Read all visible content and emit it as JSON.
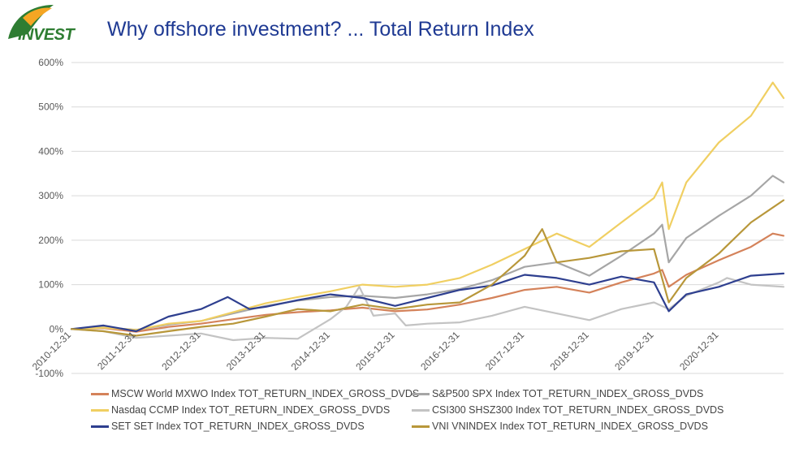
{
  "header": {
    "logo_text": "INVEST",
    "title": "Why offshore investment? ... Total Return Index"
  },
  "colors": {
    "title": "#1f3a93",
    "logo_green": "#2e7d32",
    "logo_orange": "#f5a623",
    "gridline": "#d9d9d9"
  },
  "chart_data": {
    "type": "line",
    "title": "Why offshore investment? ... Total Return Index",
    "xlabel": "",
    "ylabel": "",
    "xlim": [
      "2010-12-31",
      "2021-12-31"
    ],
    "ylim": [
      -100,
      600
    ],
    "yticks": [
      -100,
      0,
      100,
      200,
      300,
      400,
      500,
      600
    ],
    "ytick_labels": [
      "-100%",
      "0%",
      "100%",
      "200%",
      "300%",
      "400%",
      "500%",
      "600%"
    ],
    "xticks": [
      "2010-12-31",
      "2011-12-31",
      "2012-12-31",
      "2013-12-31",
      "2014-12-31",
      "2015-12-31",
      "2016-12-31",
      "2017-12-31",
      "2018-12-31",
      "2019-12-31",
      "2020-12-31"
    ],
    "grid": "horizontal",
    "legend_position": "bottom",
    "series": [
      {
        "name": "MSCW World MXWO Index TOT_RETURN_INDEX_GROSS_DVDS",
        "color": "#d4825a",
        "x": [
          "2010-12-31",
          "2011-06-30",
          "2011-12-31",
          "2012-06-30",
          "2012-12-31",
          "2013-06-30",
          "2013-12-31",
          "2014-06-30",
          "2014-12-31",
          "2015-06-30",
          "2015-12-31",
          "2016-06-30",
          "2016-12-31",
          "2017-06-30",
          "2017-12-31",
          "2018-06-30",
          "2018-12-31",
          "2019-06-30",
          "2019-12-31",
          "2020-02-15",
          "2020-03-23",
          "2020-06-30",
          "2020-12-31",
          "2021-06-30",
          "2021-10-31",
          "2021-12-31"
        ],
        "y": [
          0,
          2,
          -6,
          5,
          12,
          22,
          32,
          38,
          42,
          48,
          40,
          44,
          55,
          70,
          88,
          95,
          82,
          105,
          125,
          133,
          95,
          122,
          155,
          185,
          215,
          210
        ]
      },
      {
        "name": "S&P500 SPX Index TOT_RETURN_INDEX_GROSS_DVDS",
        "color": "#a6a6a6",
        "x": [
          "2010-12-31",
          "2011-06-30",
          "2011-12-31",
          "2012-06-30",
          "2012-12-31",
          "2013-06-30",
          "2013-12-31",
          "2014-06-30",
          "2014-12-31",
          "2015-06-30",
          "2015-12-31",
          "2016-06-30",
          "2016-12-31",
          "2017-06-30",
          "2017-12-31",
          "2018-06-30",
          "2018-12-31",
          "2019-06-30",
          "2019-12-31",
          "2020-02-15",
          "2020-03-23",
          "2020-06-30",
          "2020-12-31",
          "2021-06-30",
          "2021-10-31",
          "2021-12-31"
        ],
        "y": [
          0,
          4,
          -2,
          10,
          18,
          35,
          52,
          64,
          72,
          75,
          70,
          78,
          90,
          110,
          140,
          150,
          120,
          165,
          215,
          235,
          150,
          205,
          255,
          300,
          345,
          330
        ]
      },
      {
        "name": "Nasdaq CCMP Index TOT_RETURN_INDEX_GROSS_DVDS",
        "color": "#f0cf62",
        "x": [
          "2010-12-31",
          "2011-06-30",
          "2011-12-31",
          "2012-06-30",
          "2012-12-31",
          "2013-06-30",
          "2013-12-31",
          "2014-06-30",
          "2014-12-31",
          "2015-06-30",
          "2015-12-31",
          "2016-06-30",
          "2016-12-31",
          "2017-06-30",
          "2017-12-31",
          "2018-06-30",
          "2018-12-31",
          "2019-06-30",
          "2019-12-31",
          "2020-02-15",
          "2020-03-23",
          "2020-06-30",
          "2020-12-31",
          "2021-06-30",
          "2021-10-31",
          "2021-12-31"
        ],
        "y": [
          0,
          3,
          -2,
          12,
          18,
          38,
          58,
          72,
          85,
          100,
          95,
          100,
          115,
          145,
          180,
          215,
          185,
          240,
          295,
          330,
          225,
          330,
          420,
          480,
          555,
          520
        ]
      },
      {
        "name": "CSI300 SHSZ300 Index TOT_RETURN_INDEX_GROSS_DVDS",
        "color": "#c3c3c3",
        "x": [
          "2010-12-31",
          "2011-06-30",
          "2011-12-31",
          "2012-06-30",
          "2012-12-31",
          "2013-06-30",
          "2013-12-31",
          "2014-06-30",
          "2014-12-31",
          "2015-03-31",
          "2015-06-12",
          "2015-08-31",
          "2015-12-31",
          "2016-02-29",
          "2016-06-30",
          "2016-12-31",
          "2017-06-30",
          "2017-12-31",
          "2018-06-30",
          "2018-12-31",
          "2019-06-30",
          "2019-12-31",
          "2020-03-23",
          "2020-06-30",
          "2020-12-31",
          "2021-02-15",
          "2021-06-30",
          "2021-12-31"
        ],
        "y": [
          0,
          -5,
          -20,
          -15,
          -10,
          -25,
          -20,
          -22,
          22,
          50,
          95,
          30,
          35,
          8,
          12,
          15,
          30,
          50,
          35,
          20,
          45,
          60,
          45,
          75,
          105,
          115,
          100,
          95
        ]
      },
      {
        "name": "SET SET Index TOT_RETURN_INDEX_GROSS_DVDS",
        "color": "#2e3f8f",
        "x": [
          "2010-12-31",
          "2011-06-30",
          "2011-12-31",
          "2012-06-30",
          "2012-12-31",
          "2013-05-31",
          "2013-09-30",
          "2013-12-31",
          "2014-06-30",
          "2014-12-31",
          "2015-06-30",
          "2015-12-31",
          "2016-06-30",
          "2016-12-31",
          "2017-06-30",
          "2017-12-31",
          "2018-06-30",
          "2018-12-31",
          "2019-06-30",
          "2019-12-31",
          "2020-03-23",
          "2020-06-30",
          "2020-12-31",
          "2021-06-30",
          "2021-12-31"
        ],
        "y": [
          0,
          8,
          -5,
          28,
          45,
          72,
          45,
          50,
          65,
          78,
          70,
          52,
          70,
          88,
          98,
          122,
          115,
          100,
          118,
          105,
          40,
          78,
          95,
          120,
          125
        ]
      },
      {
        "name": "VNI VNINDEX Index TOT_RETURN_INDEX_GROSS_DVDS",
        "color": "#b8973a",
        "x": [
          "2010-12-31",
          "2011-06-30",
          "2011-12-31",
          "2012-06-30",
          "2012-12-31",
          "2013-06-30",
          "2013-12-31",
          "2014-06-30",
          "2014-12-31",
          "2015-06-30",
          "2015-12-31",
          "2016-06-30",
          "2016-12-31",
          "2017-06-30",
          "2017-12-31",
          "2018-04-09",
          "2018-06-30",
          "2018-12-31",
          "2019-06-30",
          "2019-12-31",
          "2020-03-23",
          "2020-06-30",
          "2020-12-31",
          "2021-06-30",
          "2021-12-31"
        ],
        "y": [
          0,
          -5,
          -15,
          -5,
          5,
          12,
          28,
          45,
          40,
          55,
          45,
          55,
          60,
          100,
          165,
          225,
          150,
          160,
          175,
          180,
          60,
          115,
          170,
          240,
          290
        ]
      }
    ]
  }
}
